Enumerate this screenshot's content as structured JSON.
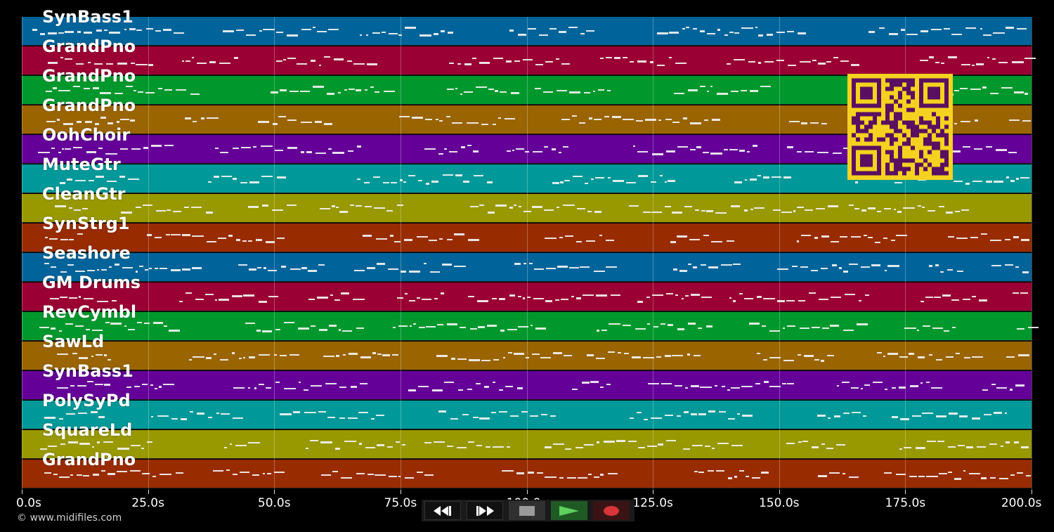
{
  "tracks": [
    {
      "name": "SynBass1",
      "color": "#00649a"
    },
    {
      "name": "GrandPno",
      "color": "#9a0033"
    },
    {
      "name": "GrandPno",
      "color": "#00982c"
    },
    {
      "name": "GrandPno",
      "color": "#9a6400"
    },
    {
      "name": "OohChoir",
      "color": "#640098"
    },
    {
      "name": "MuteGtr",
      "color": "#009898"
    },
    {
      "name": "CleanGtr",
      "color": "#989800"
    },
    {
      "name": "SynStrg1",
      "color": "#982c00"
    },
    {
      "name": "Seashore",
      "color": "#00649a"
    },
    {
      "name": "GM Drums",
      "color": "#9a0033"
    },
    {
      "name": "RevCymbl",
      "color": "#00982c"
    },
    {
      "name": "SawLd",
      "color": "#9a6400"
    },
    {
      "name": "SynBass1",
      "color": "#640098"
    },
    {
      "name": "PolySyPd",
      "color": "#009898"
    },
    {
      "name": "SquareLd",
      "color": "#989800"
    },
    {
      "name": "GrandPno",
      "color": "#982c00"
    }
  ],
  "time_axis": {
    "min": 0,
    "max": 200,
    "ticks": [
      "0.0s",
      "25.0s",
      "50.0s",
      "75.0s",
      "100.0s",
      "125.0s",
      "150.0s",
      "175.0s",
      "200.0s"
    ]
  },
  "copyright": "© www.midifiles.com",
  "transport": {
    "rewind_icon": "rewind-icon",
    "forward_icon": "fast-forward-icon",
    "stop_icon": "stop-icon",
    "play_icon": "play-icon",
    "record_icon": "record-icon"
  },
  "colors": {
    "background": "#000000",
    "qr_background": "#f5d21f",
    "qr_foreground": "#5a1060"
  }
}
